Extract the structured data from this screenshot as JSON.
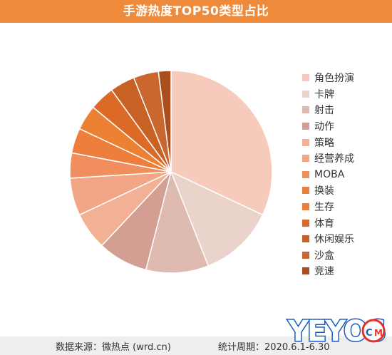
{
  "header": {
    "title": "手游热度TOP50类型占比"
  },
  "footer": {
    "source": "数据来源：微热点 (wrd.cn)",
    "period": "统计周期：2020.6.1-6.30"
  },
  "watermark": {
    "text": "YEYO6.COM"
  },
  "chart_data": {
    "type": "pie",
    "title": "手游热度TOP50类型占比",
    "legend_position": "right",
    "start_angle_deg": 0,
    "direction": "clockwise",
    "slices": [
      {
        "label": "角色扮演",
        "value": 32,
        "color": "#f7cbbc"
      },
      {
        "label": "卡牌",
        "value": 12,
        "color": "#ead3cb"
      },
      {
        "label": "射击",
        "value": 10,
        "color": "#dfbab0"
      },
      {
        "label": "动作",
        "value": 8,
        "color": "#d39f92"
      },
      {
        "label": "策略",
        "value": 6,
        "color": "#f2b195"
      },
      {
        "label": "经营养成",
        "value": 6,
        "color": "#f2a686"
      },
      {
        "label": "MOBA",
        "value": 4,
        "color": "#f08e5e"
      },
      {
        "label": "换装",
        "value": 4,
        "color": "#ee7e3b"
      },
      {
        "label": "生存",
        "value": 4,
        "color": "#ec8133"
      },
      {
        "label": "体育",
        "value": 4,
        "color": "#dc6a27"
      },
      {
        "label": "休闲娱乐",
        "value": 4,
        "color": "#c86224"
      },
      {
        "label": "沙盒",
        "value": 4,
        "color": "#c9672e"
      },
      {
        "label": "竞速",
        "value": 2,
        "color": "#a94e1c"
      }
    ]
  }
}
